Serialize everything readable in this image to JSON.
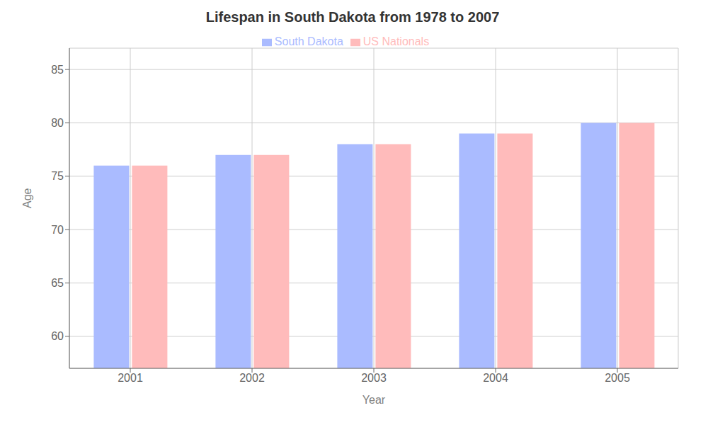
{
  "chart_data": {
    "type": "bar",
    "title": "Lifespan in South Dakota from 1978 to 2007",
    "x_label": "Year",
    "y_label": "Age",
    "categories": [
      "2001",
      "2002",
      "2003",
      "2004",
      "2005"
    ],
    "series": [
      {
        "name": "South Dakota",
        "color": "#aabbff",
        "values": [
          76.0,
          77.0,
          78.0,
          79.0,
          80.0
        ]
      },
      {
        "name": "US Nationals",
        "color": "#ffbbbb",
        "values": [
          76.0,
          77.0,
          78.0,
          79.0,
          80.0
        ]
      }
    ],
    "ylim": [
      57,
      87
    ],
    "yticks": [
      60,
      65,
      70,
      75,
      80,
      85
    ],
    "grid": true,
    "legend": "top"
  }
}
